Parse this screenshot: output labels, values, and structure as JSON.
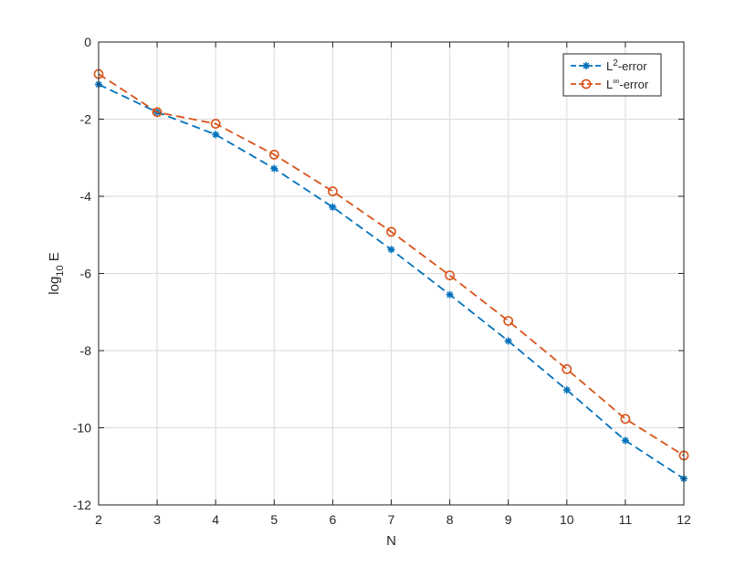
{
  "chart_data": {
    "type": "line",
    "xlabel": "N",
    "ylabel": {
      "base": "log",
      "subscript": "10",
      "rest": " E"
    },
    "xlim": [
      2,
      12
    ],
    "ylim": [
      -12,
      0
    ],
    "xticks": [
      2,
      3,
      4,
      5,
      6,
      7,
      8,
      9,
      10,
      11,
      12
    ],
    "yticks": [
      0,
      -2,
      -4,
      -6,
      -8,
      -10,
      -12
    ],
    "grid": true,
    "legend_position": "top-right",
    "x": [
      2,
      3,
      4,
      5,
      6,
      7,
      8,
      9,
      10,
      11,
      12
    ],
    "series": [
      {
        "name": "L2-error",
        "legend": {
          "base": "L",
          "sup": "2",
          "rest": "-error"
        },
        "color": "#0072BD",
        "marker": "asterisk",
        "line_style": "dashed",
        "values": [
          -1.1,
          -1.82,
          -2.4,
          -3.28,
          -4.28,
          -5.38,
          -6.55,
          -7.75,
          -9.02,
          -10.33,
          -11.32
        ]
      },
      {
        "name": "L∞-error",
        "legend": {
          "base": "L",
          "sup": "∞",
          "rest": "-error"
        },
        "color": "#D95319",
        "marker": "circle",
        "line_style": "dashed",
        "values": [
          -0.83,
          -1.82,
          -2.12,
          -2.92,
          -3.87,
          -4.92,
          -6.05,
          -7.23,
          -8.48,
          -9.77,
          -10.72
        ]
      }
    ]
  }
}
